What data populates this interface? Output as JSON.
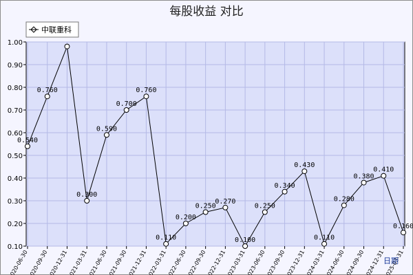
{
  "chart_data": {
    "type": "line",
    "title": "每股收益  对比",
    "xlabel": "日期",
    "ylabel": "",
    "ylim": [
      0.1,
      1.0
    ],
    "yticks": [
      "0.10",
      "0.20",
      "0.30",
      "0.40",
      "0.50",
      "0.60",
      "0.70",
      "0.80",
      "0.90",
      "1.00"
    ],
    "categories": [
      "2020-06-30",
      "2020-09-30",
      "2020-12-31",
      "2021-03-31",
      "2021-06-30",
      "2021-09-30",
      "2021-12-31",
      "2022-03-31",
      "2022-06-30",
      "2022-09-30",
      "2022-12-31",
      "2023-03-31",
      "2023-06-30",
      "2023-09-30",
      "2023-12-31",
      "2024-03-31",
      "2024-06-30",
      "2024-09-30",
      "2024-12-31",
      "2025-03-31"
    ],
    "series": [
      {
        "name": "中联重科",
        "values": [
          0.54,
          0.76,
          0.98,
          0.3,
          0.59,
          0.7,
          0.76,
          0.11,
          0.2,
          0.25,
          0.27,
          0.1,
          0.25,
          0.34,
          0.43,
          0.11,
          0.28,
          0.38,
          0.41,
          0.16
        ],
        "labels": [
          "0.540",
          "0.760",
          "",
          "0.300",
          "0.590",
          "0.700",
          "0.760",
          "0.110",
          "0.200",
          "0.250",
          "0.270",
          "0.100",
          "0.250",
          "0.340",
          "0.430",
          "0.110",
          "0.280",
          "0.380",
          "0.410",
          "0.160"
        ]
      }
    ],
    "grid": true,
    "legend_position": "top-left"
  }
}
